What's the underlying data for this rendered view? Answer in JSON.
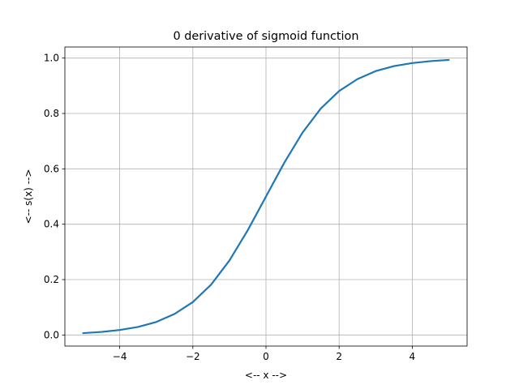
{
  "chart_data": {
    "type": "line",
    "title": "0 derivative of sigmoid function",
    "xlabel": "<-- x -->",
    "ylabel": "<-- s(x) -->",
    "xlim": [
      -5.5,
      5.5
    ],
    "ylim": [
      -0.04,
      1.04
    ],
    "x_ticks": [
      -4,
      -2,
      0,
      2,
      4
    ],
    "x_tick_labels": [
      "−4",
      "−2",
      "0",
      "2",
      "4"
    ],
    "y_ticks": [
      0.0,
      0.2,
      0.4,
      0.6,
      0.8,
      1.0
    ],
    "y_tick_labels": [
      "0.0",
      "0.2",
      "0.4",
      "0.6",
      "0.8",
      "1.0"
    ],
    "grid": true,
    "series": [
      {
        "color": "#1f77b4",
        "x": [
          -5.0,
          -4.5,
          -4.0,
          -3.5,
          -3.0,
          -2.5,
          -2.0,
          -1.5,
          -1.0,
          -0.5,
          0.0,
          0.5,
          1.0,
          1.5,
          2.0,
          2.5,
          3.0,
          3.5,
          4.0,
          4.5,
          5.0
        ],
        "y": [
          0.0067,
          0.011,
          0.018,
          0.029,
          0.047,
          0.076,
          0.119,
          0.182,
          0.269,
          0.378,
          0.5,
          0.622,
          0.731,
          0.818,
          0.881,
          0.924,
          0.953,
          0.971,
          0.982,
          0.989,
          0.9933
        ]
      }
    ]
  }
}
